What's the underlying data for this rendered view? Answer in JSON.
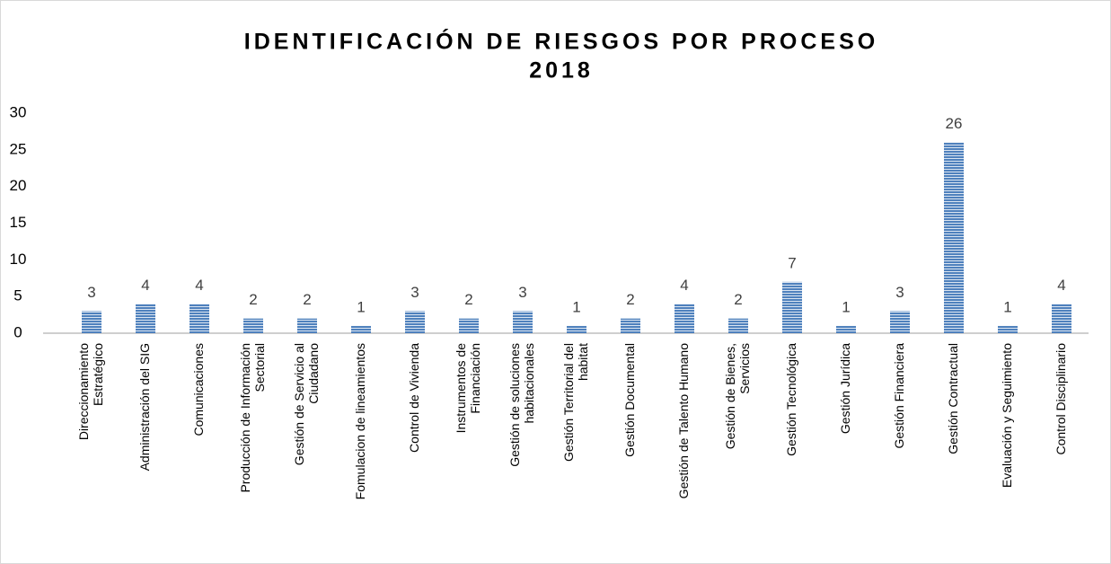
{
  "chart_data": {
    "type": "bar",
    "title": [
      "IDENTIFICACIÓN DE RIESGOS POR PROCESO",
      "2018"
    ],
    "categories": [
      "Direccionamiento Estratégico",
      "Administración del SIG",
      "Comunicaciones",
      "Producción de Información Sectorial",
      "Gestión de Servicio al Ciudadano",
      "Fomulacion de lineamientos",
      "Control de Vivienda",
      "Instrumentos de Financiación",
      "Gestión de soluciones habitacionales",
      "Gestión Territorial del habitat",
      "Gestión Documental",
      "Gestión de Talento Humano",
      "Gestión de Bienes, Servicios",
      "Gestión Tecnológica",
      "Gestión Jurídica",
      "Gestión Financiera",
      "Gestión Contractual",
      "Evaluación y Seguimiento",
      "Control Disciplinario"
    ],
    "values": [
      3,
      4,
      4,
      2,
      2,
      1,
      3,
      2,
      3,
      1,
      2,
      4,
      2,
      7,
      1,
      3,
      26,
      1,
      4
    ],
    "color": "#4f81bd",
    "ylim": [
      0,
      30
    ],
    "yticks": [
      0,
      5,
      10,
      15,
      20,
      25,
      30
    ],
    "grid": false
  }
}
